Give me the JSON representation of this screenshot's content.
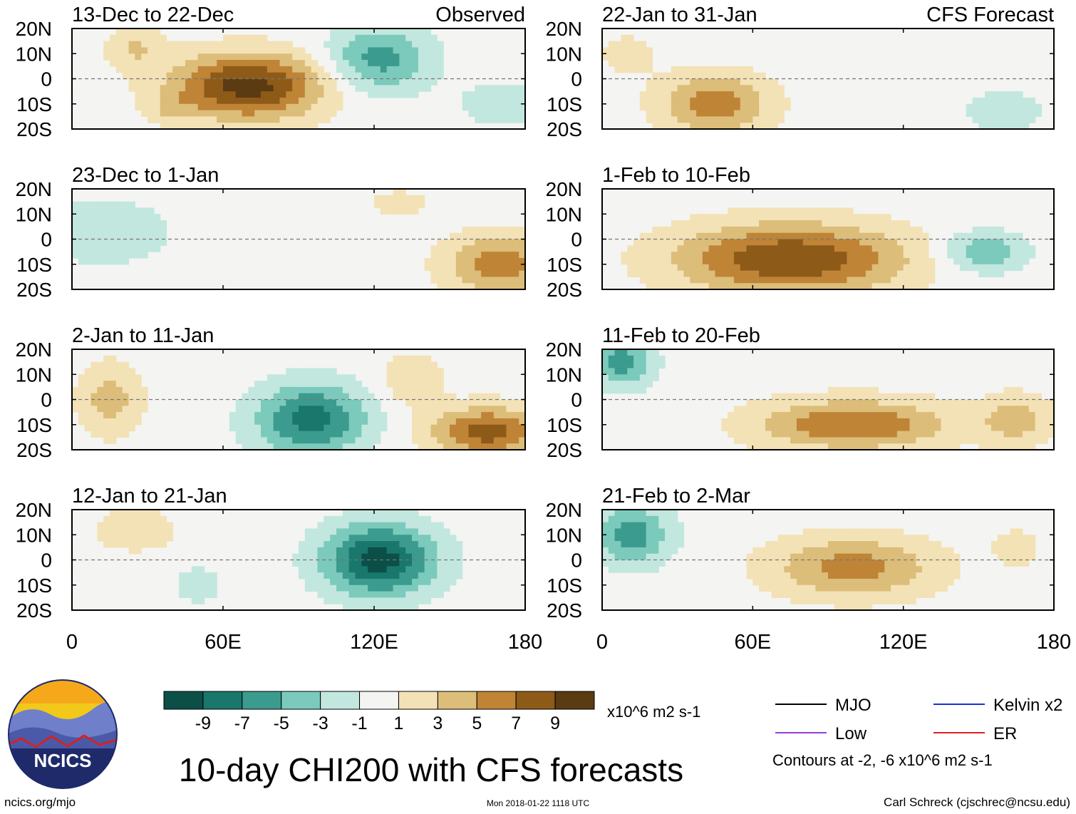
{
  "chart_data": {
    "type": "heatmap",
    "title": "10-day CHI200 with CFS forecasts",
    "variable": "CHI200",
    "units": "x10^6 m2 s-1",
    "xlabel": "",
    "ylabel": "",
    "x_ticks": [
      "0",
      "60E",
      "120E",
      "180"
    ],
    "y_ticks": [
      "20N",
      "10N",
      "0",
      "10S",
      "20S"
    ],
    "xlim": [
      0,
      180
    ],
    "ylim": [
      -20,
      20
    ],
    "column_headers": {
      "left": "Observed",
      "right": "CFS Forecast"
    },
    "colorbar": {
      "labels": [
        "-9",
        "-7",
        "-5",
        "-3",
        "-1",
        "1",
        "3",
        "5",
        "7",
        "9"
      ],
      "colors": [
        "#0b4f47",
        "#19776c",
        "#3a9b8e",
        "#7bcabc",
        "#c2e7df",
        "#f4f4f2",
        "#f3e2b6",
        "#dcbd79",
        "#bf8436",
        "#8e5a18",
        "#5a3b12"
      ]
    },
    "panels": [
      {
        "period": "13-Dec to 22-Dec",
        "source": "Observed",
        "centers": [
          [
            70,
            -3,
            30,
            13,
            10
          ],
          [
            25,
            12,
            12,
            8,
            3
          ],
          [
            122,
            8,
            20,
            13,
            -6
          ],
          [
            170,
            -10,
            14,
            8,
            -3
          ],
          [
            40,
            -12,
            10,
            6,
            2
          ]
        ]
      },
      {
        "period": "23-Dec to 1-Jan",
        "source": "Observed",
        "centers": [
          [
            12,
            3,
            25,
            12,
            -3
          ],
          [
            170,
            -10,
            22,
            12,
            6
          ],
          [
            130,
            14,
            12,
            6,
            2
          ]
        ]
      },
      {
        "period": "2-Jan to 11-Jan",
        "source": "Observed",
        "centers": [
          [
            95,
            -8,
            22,
            14,
            -8
          ],
          [
            15,
            0,
            12,
            14,
            4
          ],
          [
            165,
            -13,
            22,
            10,
            8
          ],
          [
            135,
            8,
            12,
            10,
            3
          ]
        ]
      },
      {
        "period": "12-Jan to 21-Jan",
        "source": "Observed",
        "centers": [
          [
            122,
            0,
            22,
            14,
            -10
          ],
          [
            25,
            12,
            15,
            8,
            3
          ],
          [
            50,
            -10,
            10,
            8,
            -2
          ]
        ]
      },
      {
        "period": "22-Jan to 31-Jan",
        "source": "CFS Forecast",
        "centers": [
          [
            45,
            -10,
            22,
            12,
            6
          ],
          [
            160,
            -13,
            14,
            8,
            -3
          ],
          [
            10,
            10,
            12,
            8,
            2
          ]
        ]
      },
      {
        "period": "1-Feb to 10-Feb",
        "source": "CFS Forecast",
        "centers": [
          [
            75,
            -8,
            45,
            14,
            9
          ],
          [
            152,
            -5,
            16,
            8,
            -5
          ]
        ]
      },
      {
        "period": "11-Feb to 20-Feb",
        "source": "CFS Forecast",
        "centers": [
          [
            100,
            -10,
            38,
            10,
            7
          ],
          [
            8,
            15,
            12,
            10,
            -6
          ],
          [
            165,
            -8,
            14,
            10,
            4
          ]
        ]
      },
      {
        "period": "21-Feb to 2-Mar",
        "source": "CFS Forecast",
        "centers": [
          [
            100,
            -3,
            32,
            12,
            6
          ],
          [
            12,
            10,
            15,
            12,
            -6
          ],
          [
            165,
            5,
            10,
            8,
            2
          ]
        ]
      }
    ]
  },
  "legend": {
    "items": [
      {
        "label": "MJO",
        "color": "#000000"
      },
      {
        "label": "Kelvin x2",
        "color": "#1a2fd6"
      },
      {
        "label": "Low",
        "color": "#9a3ad6"
      },
      {
        "label": "ER",
        "color": "#e02020"
      }
    ],
    "note": "Contours at -2, -6 x10^6 m2 s-1"
  },
  "footer": {
    "site": "ncics.org/mjo",
    "timestamp": "Mon 2018-01-22 1118 UTC",
    "author": "Carl Schreck (cjschrec@ncsu.edu)"
  },
  "logo": {
    "text": "NCICS"
  }
}
